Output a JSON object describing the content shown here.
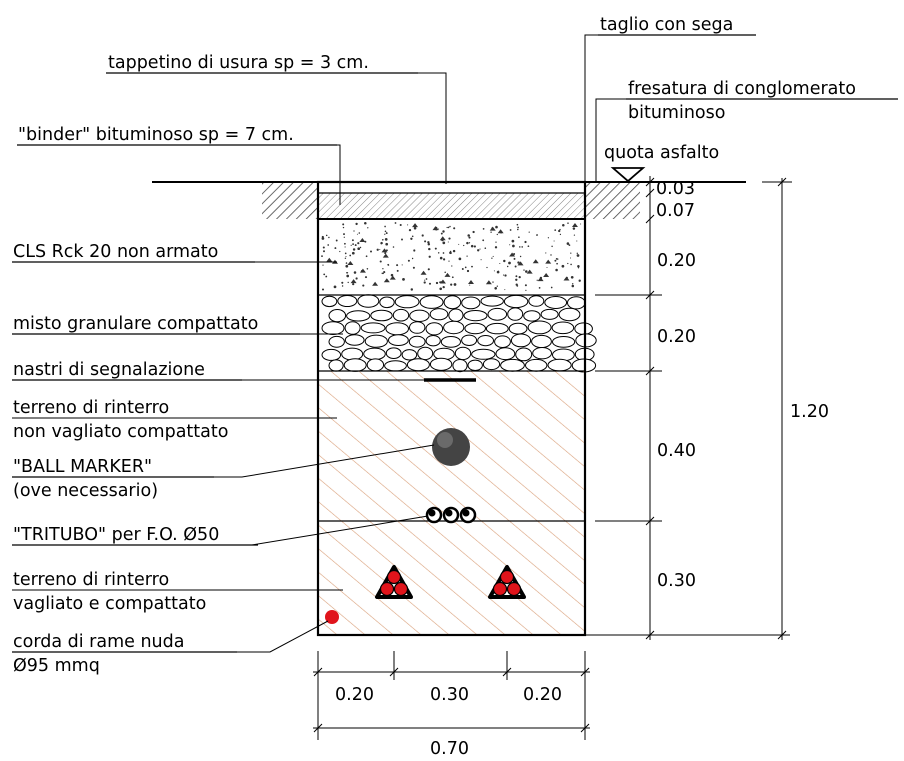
{
  "labels": {
    "taglio": "taglio con sega",
    "tappetino": "tappetino di usura sp = 3 cm.",
    "fresatura_1": "fresatura di conglomerato",
    "fresatura_2": "bituminoso",
    "binder": "\"binder\" bituminoso sp = 7 cm.",
    "quota": "quota asfalto",
    "cls": "CLS Rck 20 non armato",
    "misto": "misto granulare compattato",
    "nastri": "nastri di segnalazione",
    "terreno1_1": "terreno di rinterro",
    "terreno1_2": "non vagliato compattato",
    "ball_1": "\"BALL MARKER\"",
    "ball_2": "(ove necessario)",
    "tritubo": "\"TRITUBO\" per F.O. Ø50",
    "terreno2_1": "terreno di rinterro",
    "terreno2_2": "vagliato e compattato",
    "corda_1": "corda di rame nuda",
    "corda_2": "Ø95 mmq"
  },
  "dimensions": {
    "d003": "0.03",
    "d007": "0.07",
    "d020a": "0.20",
    "d020b": "0.20",
    "d040": "0.40",
    "d030": "0.30",
    "d120": "1.20",
    "w020a": "0.20",
    "w030": "0.30",
    "w020b": "0.20",
    "w070": "0.70"
  },
  "colors": {
    "line": "#000000",
    "soil_hatch": "#d9a07a",
    "cable_red": "#e0141b",
    "asphalt_hatch": "#444444"
  }
}
